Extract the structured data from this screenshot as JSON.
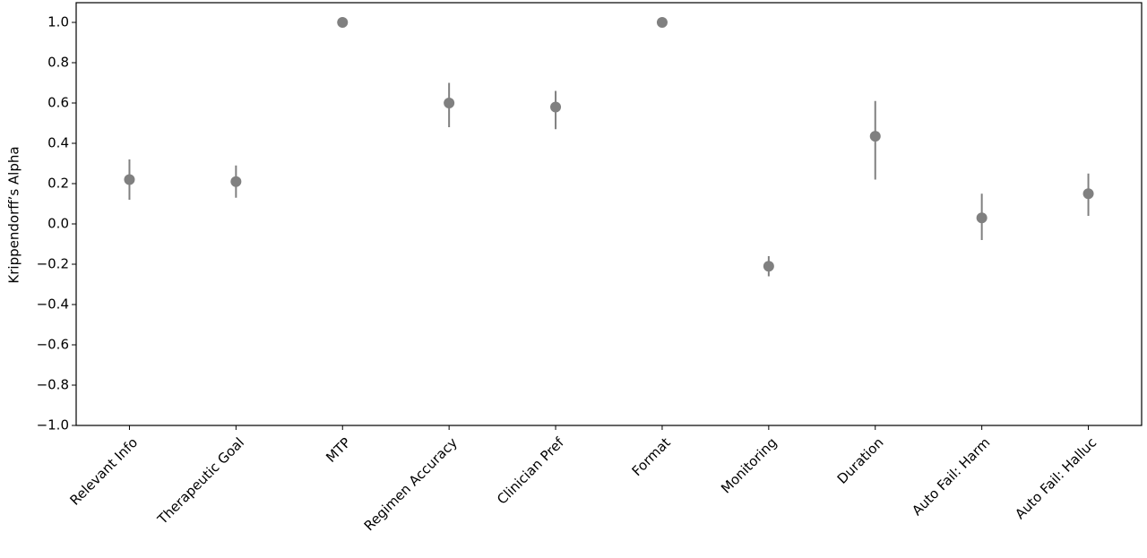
{
  "chart_data": {
    "type": "errorbar",
    "y_label": "Krippendorff’s Alpha",
    "categories": [
      "Relevant Info",
      "Therapeutic Goal",
      "MTP",
      "Regimen Accuracy",
      "Clinician Pref",
      "Format",
      "Monitoring",
      "Duration",
      "Auto Fail: Harm",
      "Auto Fail: Halluc"
    ],
    "values": [
      0.22,
      0.21,
      1.0,
      0.6,
      0.58,
      1.0,
      -0.21,
      0.435,
      0.03,
      0.15
    ],
    "lower": [
      0.12,
      0.13,
      1.0,
      0.48,
      0.47,
      1.0,
      -0.26,
      0.22,
      -0.08,
      0.04
    ],
    "upper": [
      0.32,
      0.29,
      1.0,
      0.7,
      0.66,
      1.0,
      -0.16,
      0.61,
      0.15,
      0.25
    ],
    "color": "#808080",
    "ylim": [
      -1.0,
      1.0
    ],
    "yticks": [
      {
        "value": -1.0,
        "label": "−1.0"
      },
      {
        "value": -0.8,
        "label": "−0.8"
      },
      {
        "value": -0.6,
        "label": "−0.6"
      },
      {
        "value": -0.4,
        "label": "−0.4"
      },
      {
        "value": -0.2,
        "label": "−0.2"
      },
      {
        "value": 0.0,
        "label": "0.0"
      },
      {
        "value": 0.2,
        "label": "0.2"
      },
      {
        "value": 0.4,
        "label": "0.4"
      },
      {
        "value": 0.6,
        "label": "0.6"
      },
      {
        "value": 0.8,
        "label": "0.8"
      },
      {
        "value": 1.0,
        "label": "1.0"
      }
    ]
  }
}
